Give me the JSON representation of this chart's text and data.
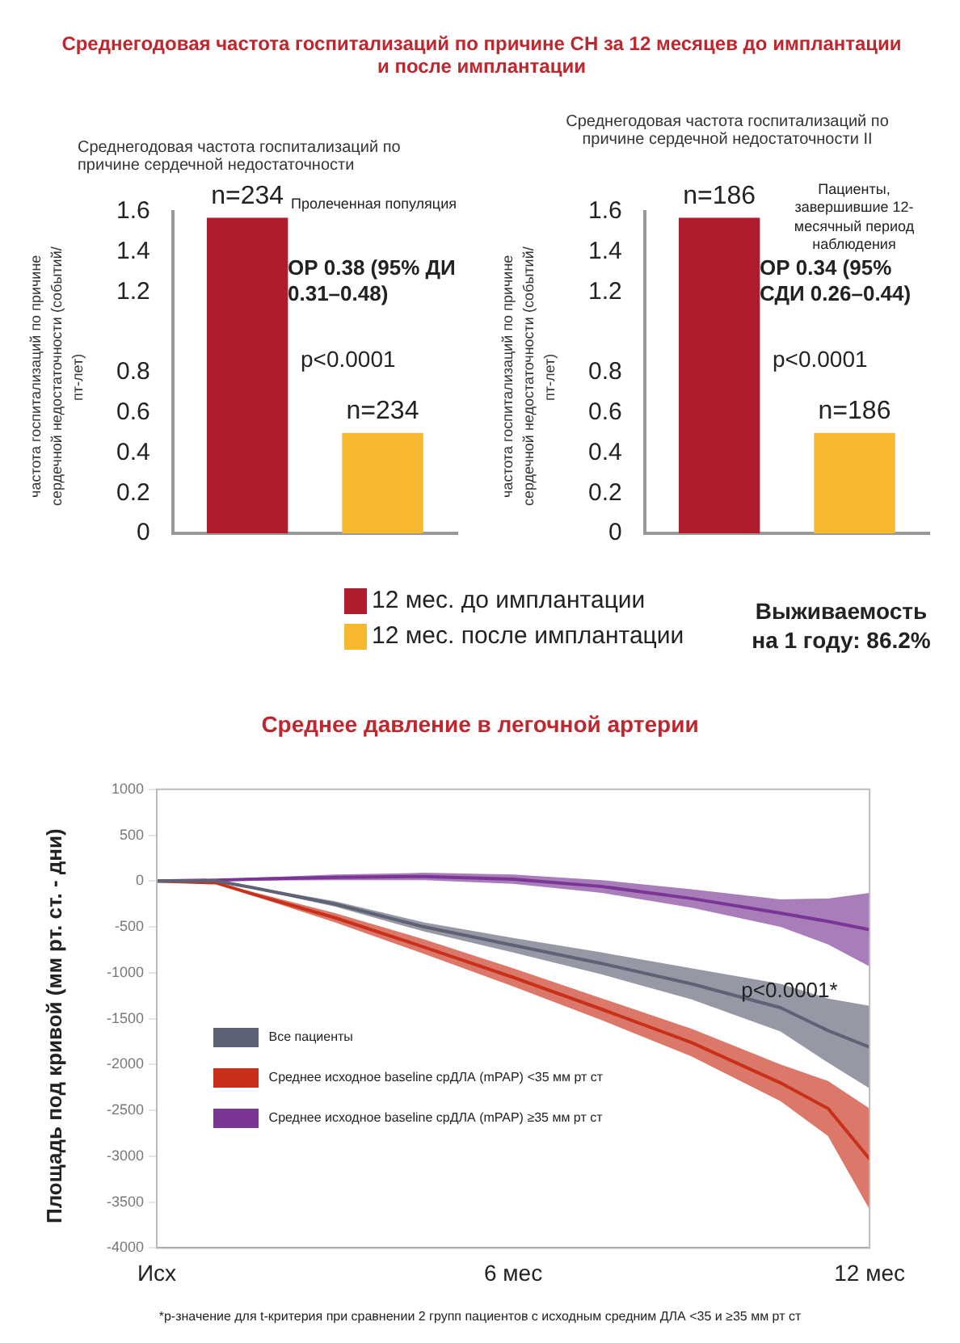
{
  "chart_data": [
    {
      "type": "bar",
      "title": "Среднегодовая частота госпитализаций по причине СН за 12 месяцев до имплантации и после имплантации",
      "subtitle": "Среднегодовая частота госпитализаций по причине сердечной недостаточности",
      "ylabel": "частота госпитализаций по причине сердечной недостаточности (событий/пт-лет)",
      "categories": [
        null
      ],
      "series": [
        {
          "name": "12 мес. до имплантации",
          "color": "#b01c2e",
          "values": [
            1.57
          ]
        },
        {
          "name": "12 мес. после имплантации",
          "color": "#f5b82e",
          "values": [
            0.5
          ]
        }
      ],
      "ylim": [
        0,
        1.6
      ],
      "yticks": [
        0,
        0.2,
        0.4,
        0.6,
        0.8,
        1.2,
        1.4,
        1.6
      ],
      "tick_labels": "y",
      "grid": false,
      "legend": "bottom",
      "annotations": [
        "n=234",
        "Пролеченная популяция",
        "ОР 0.38 (95% ДИ 0.31–0.48)",
        "p<0.0001",
        "n=234"
      ]
    },
    {
      "type": "bar",
      "subtitle": "Среднегодовая частота госпитализаций по причине сердечной недостаточности II",
      "ylabel": "частота госпитализаций по причине сердечной недостаточности (событий/пт-лет)",
      "categories": [
        null
      ],
      "series": [
        {
          "color": "#b01c2e",
          "values": [
            1.57
          ]
        },
        {
          "color": "#f5b82e",
          "values": [
            0.5
          ]
        }
      ],
      "ylim": [
        0,
        1.6
      ],
      "yticks": [
        0,
        0.2,
        0.4,
        0.6,
        0.8,
        1.2,
        1.4,
        1.6
      ],
      "tick_labels": "y",
      "grid": false,
      "annotations": [
        "n=186",
        "Пациенты, завершившие 12-месячный период наблюдения",
        "ОР 0.34 (95% СДИ 0.26–0.44)",
        "p<0.0001",
        "n=186",
        "Выживаемость на 1 году: 86.2%"
      ]
    },
    {
      "type": "line",
      "title": "Среднее давление в легочной артерии",
      "ylabel": "Площадь под кривой (мм рт. ст. - дни)",
      "x": [
        0,
        1,
        1.6,
        3,
        4.5,
        6,
        7.5,
        9,
        10.5,
        11.3,
        12
      ],
      "series": [
        {
          "name": "Все пациенты",
          "color": "#5d6275",
          "values": [
            0,
            0,
            -70,
            -250,
            -500,
            -700,
            -900,
            -1120,
            -1380,
            -1630,
            -1810
          ],
          "lower": [
            0,
            0,
            -80,
            -280,
            -550,
            -780,
            -1020,
            -1290,
            -1640,
            -1980,
            -2260
          ],
          "upper": [
            0,
            0,
            -60,
            -220,
            -450,
            -620,
            -780,
            -950,
            -1120,
            -1280,
            -1360
          ]
        },
        {
          "name": "Среднее исходное  baseline срДЛА (mPAP) <35  мм рт ст",
          "color": "#c8301a",
          "values": [
            0,
            -20,
            -140,
            -400,
            -720,
            -1050,
            -1400,
            -1760,
            -2200,
            -2480,
            -3030
          ],
          "lower": [
            0,
            -25,
            -155,
            -450,
            -795,
            -1150,
            -1520,
            -1910,
            -2400,
            -2780,
            -3580
          ],
          "upper": [
            0,
            -15,
            -115,
            -350,
            -635,
            -950,
            -1280,
            -1610,
            -2000,
            -2180,
            -2480
          ]
        },
        {
          "name": "Среднее исходное  baseline срДЛА (mPAP) ≥35  мм рт ст",
          "color": "#7a3595",
          "values": [
            0,
            10,
            20,
            40,
            50,
            20,
            -60,
            -190,
            -350,
            -440,
            -530
          ],
          "lower": [
            0,
            5,
            5,
            10,
            10,
            -30,
            -130,
            -290,
            -500,
            -690,
            -930
          ],
          "upper": [
            0,
            15,
            35,
            70,
            90,
            70,
            10,
            -90,
            -200,
            -190,
            -130
          ]
        }
      ],
      "xlim": [
        0,
        12
      ],
      "xticks": [
        {
          "value": 0,
          "label": "Исх"
        },
        {
          "value": 6,
          "label": "6 мес"
        },
        {
          "value": 12,
          "label": "12 мес"
        }
      ],
      "ylim": [
        -4000,
        1000
      ],
      "yticks": [
        -4000,
        -3500,
        -3000,
        -2500,
        -2000,
        -1500,
        -1000,
        -500,
        0,
        500,
        1000
      ],
      "grid": false,
      "legend": "bottom left",
      "marker": "none",
      "line_style": "solid",
      "annotations": [
        "p<0.0001*",
        "*р-значение для t-критерия при сравнении 2 групп пациентов с исходным средним ДЛА <35 и ≥35  мм рт ст"
      ]
    }
  ]
}
